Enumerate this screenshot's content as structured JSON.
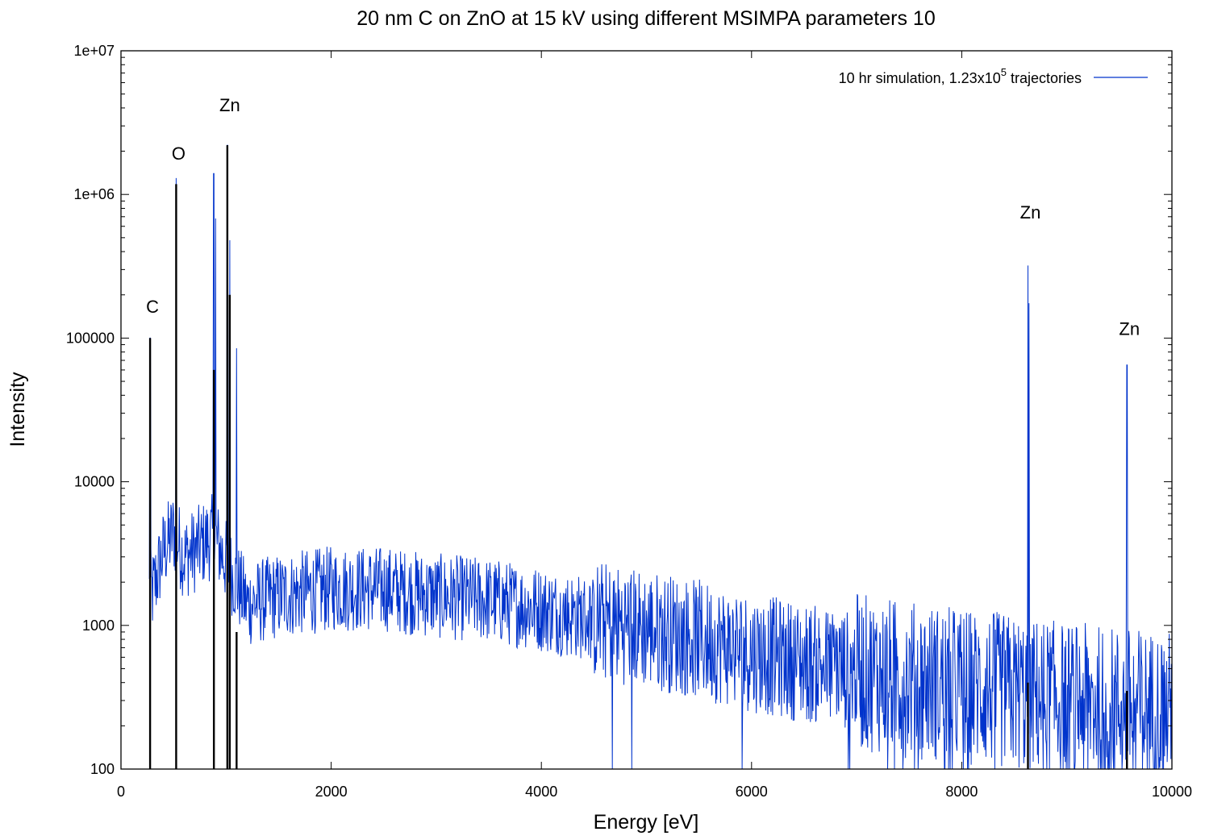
{
  "chart_data": {
    "type": "line",
    "title": "20 nm C on ZnO at 15 kV using different MSIMPA parameters 10",
    "xlabel": "Energy [eV]",
    "ylabel": "Intensity",
    "xlim": [
      0,
      10000
    ],
    "ylim": [
      100,
      10000000
    ],
    "y_scale": "log",
    "grid": false,
    "legend_position": "top-right",
    "x_ticks": [
      0,
      2000,
      4000,
      6000,
      8000,
      10000
    ],
    "x_tick_labels": [
      "0",
      "2000",
      "4000",
      "6000",
      "8000",
      "10000"
    ],
    "y_ticks": [
      100,
      1000,
      10000,
      100000,
      1000000,
      10000000
    ],
    "y_tick_labels": [
      "100",
      "1000",
      "10000",
      "100000",
      "1e+06",
      "1e+07"
    ],
    "colors": {
      "series": "#0033cc",
      "markers": "#000000",
      "frame": "#000000"
    },
    "series": [
      {
        "name": "10 hr simulation, 1.23x10",
        "name_superscript": "5",
        "name_suffix": " trajectories",
        "description_points": [
          {
            "x": 277,
            "y": 100000
          },
          {
            "x": 300,
            "y": 1700
          },
          {
            "x": 400,
            "y": 3200
          },
          {
            "x": 500,
            "y": 4500
          },
          {
            "x": 525,
            "y": 1300000
          },
          {
            "x": 600,
            "y": 3000
          },
          {
            "x": 700,
            "y": 3300
          },
          {
            "x": 800,
            "y": 3800
          },
          {
            "x": 880,
            "y": 4200
          },
          {
            "x": 884,
            "y": 1400000
          },
          {
            "x": 900,
            "y": 680000
          },
          {
            "x": 1012,
            "y": 2200000
          },
          {
            "x": 1035,
            "y": 480000
          },
          {
            "x": 1100,
            "y": 85000
          },
          {
            "x": 1200,
            "y": 1400
          },
          {
            "x": 1500,
            "y": 1600
          },
          {
            "x": 2000,
            "y": 1800
          },
          {
            "x": 2500,
            "y": 1800
          },
          {
            "x": 3000,
            "y": 1600
          },
          {
            "x": 3500,
            "y": 1500
          },
          {
            "x": 4000,
            "y": 1300
          },
          {
            "x": 4500,
            "y": 1100
          },
          {
            "x": 5000,
            "y": 950
          },
          {
            "x": 5500,
            "y": 800
          },
          {
            "x": 6000,
            "y": 650
          },
          {
            "x": 6500,
            "y": 550
          },
          {
            "x": 7000,
            "y": 480
          },
          {
            "x": 7500,
            "y": 420
          },
          {
            "x": 8000,
            "y": 380
          },
          {
            "x": 8500,
            "y": 340
          },
          {
            "x": 8630,
            "y": 320000
          },
          {
            "x": 8640,
            "y": 175000
          },
          {
            "x": 9000,
            "y": 300
          },
          {
            "x": 9572,
            "y": 65000
          },
          {
            "x": 10000,
            "y": 260
          }
        ]
      }
    ],
    "markers": [
      {
        "x": 277,
        "y": 100000
      },
      {
        "x": 525,
        "y": 1180000
      },
      {
        "x": 884,
        "y": 60000
      },
      {
        "x": 1012,
        "y": 2200000
      },
      {
        "x": 1035,
        "y": 200000
      },
      {
        "x": 1100,
        "y": 900
      },
      {
        "x": 8630,
        "y": 400
      },
      {
        "x": 9572,
        "y": 350
      }
    ],
    "annotations": [
      {
        "text": "C",
        "x": 277,
        "y": 150000
      },
      {
        "text": "O",
        "x": 525,
        "y": 1750000
      },
      {
        "text": "Zn",
        "x": 1012,
        "y": 3800000
      },
      {
        "text": "Zn",
        "x": 8630,
        "y": 680000
      },
      {
        "text": "Zn",
        "x": 9572,
        "y": 105000
      }
    ]
  }
}
